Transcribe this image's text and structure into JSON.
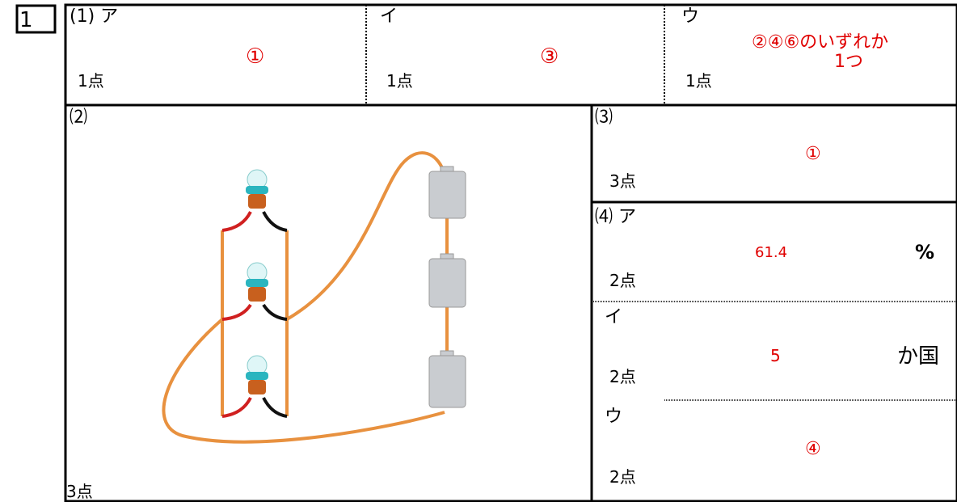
{
  "question_number": "1",
  "q1": {
    "a": {
      "label": "(1) ア",
      "answer": "①",
      "points": "1点"
    },
    "b": {
      "label": "イ",
      "answer": "③",
      "points": "1点"
    },
    "c": {
      "label": "ウ",
      "answer": [
        "②④⑥のいずれか",
        "1つ"
      ],
      "points": "1点"
    }
  },
  "q2": {
    "label": "⑵",
    "points": "3点"
  },
  "q3": {
    "label": "⑶",
    "answer": "①",
    "points": "3点"
  },
  "q4": {
    "a": {
      "label": "⑷ ア",
      "answer": "61.4",
      "unit": "%",
      "points": "2点"
    },
    "b": {
      "label": "イ",
      "answer": "5",
      "unit": "か国",
      "points": "2点"
    },
    "c": {
      "label": "ウ",
      "answer": "④",
      "points": "2点"
    }
  }
}
